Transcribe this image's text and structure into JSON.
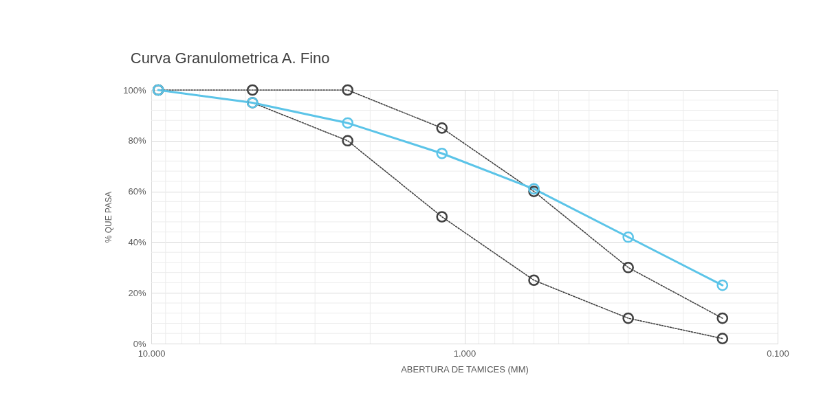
{
  "chart_data": {
    "type": "line",
    "title": "Curva Granulometrica A. Fino",
    "xlabel": "ABERTURA DE TAMICES (MM)",
    "ylabel": "% QUE PASA",
    "x": [
      9.5,
      4.75,
      2.36,
      1.18,
      0.6,
      0.3,
      0.15
    ],
    "legend": false,
    "series": [
      {
        "color": "#404040",
        "line_style": "dotted",
        "values": [
          100,
          100,
          100,
          85,
          60,
          30,
          10
        ]
      },
      {
        "color": "#404040",
        "line_style": "dotted",
        "values": [
          100,
          95,
          80,
          50,
          25,
          10,
          2
        ]
      },
      {
        "color": "#5bc4e8",
        "line_style": "solid",
        "values": [
          100,
          95,
          87,
          75,
          61,
          42,
          23
        ]
      }
    ],
    "log": "x",
    "xlim": [
      10,
      0.1
    ],
    "ylim": [
      0,
      100
    ],
    "xticks": [
      {
        "value": 10,
        "label": "10.000"
      },
      {
        "value": 1,
        "label": "1.000"
      },
      {
        "value": 0.1,
        "label": "0.100"
      }
    ],
    "yticks": [
      {
        "value": 0,
        "label": "0%"
      },
      {
        "value": 20,
        "label": "20%"
      },
      {
        "value": 40,
        "label": "40%"
      },
      {
        "value": 60,
        "label": "60%"
      },
      {
        "value": 80,
        "label": "80%"
      },
      {
        "value": 100,
        "label": "100%"
      }
    ],
    "grid": true,
    "marker": "circle"
  }
}
